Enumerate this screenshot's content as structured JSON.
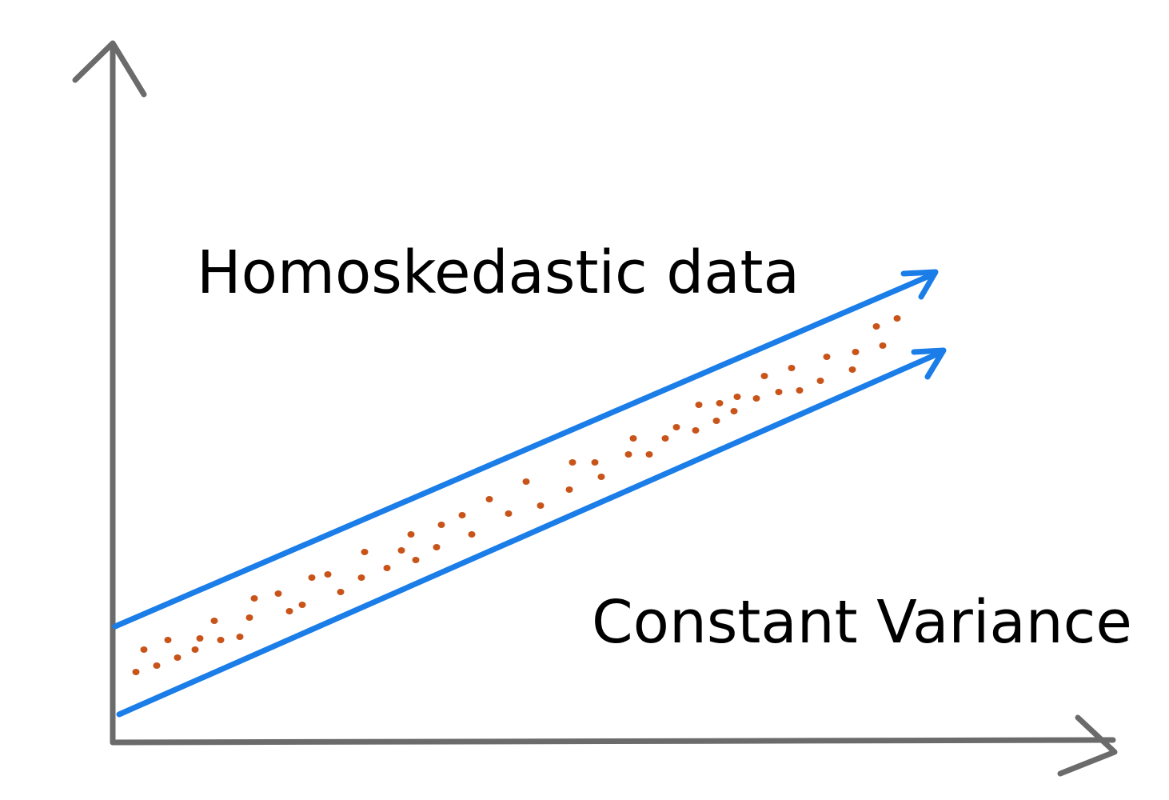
{
  "diagram": {
    "title": "Homoskedastic data",
    "subtitle": "Constant Variance",
    "colors": {
      "axis": "#6b6b6b",
      "boundary_lines": "#1a7de8",
      "points": "#c8541a",
      "text": "#000000"
    }
  }
}
